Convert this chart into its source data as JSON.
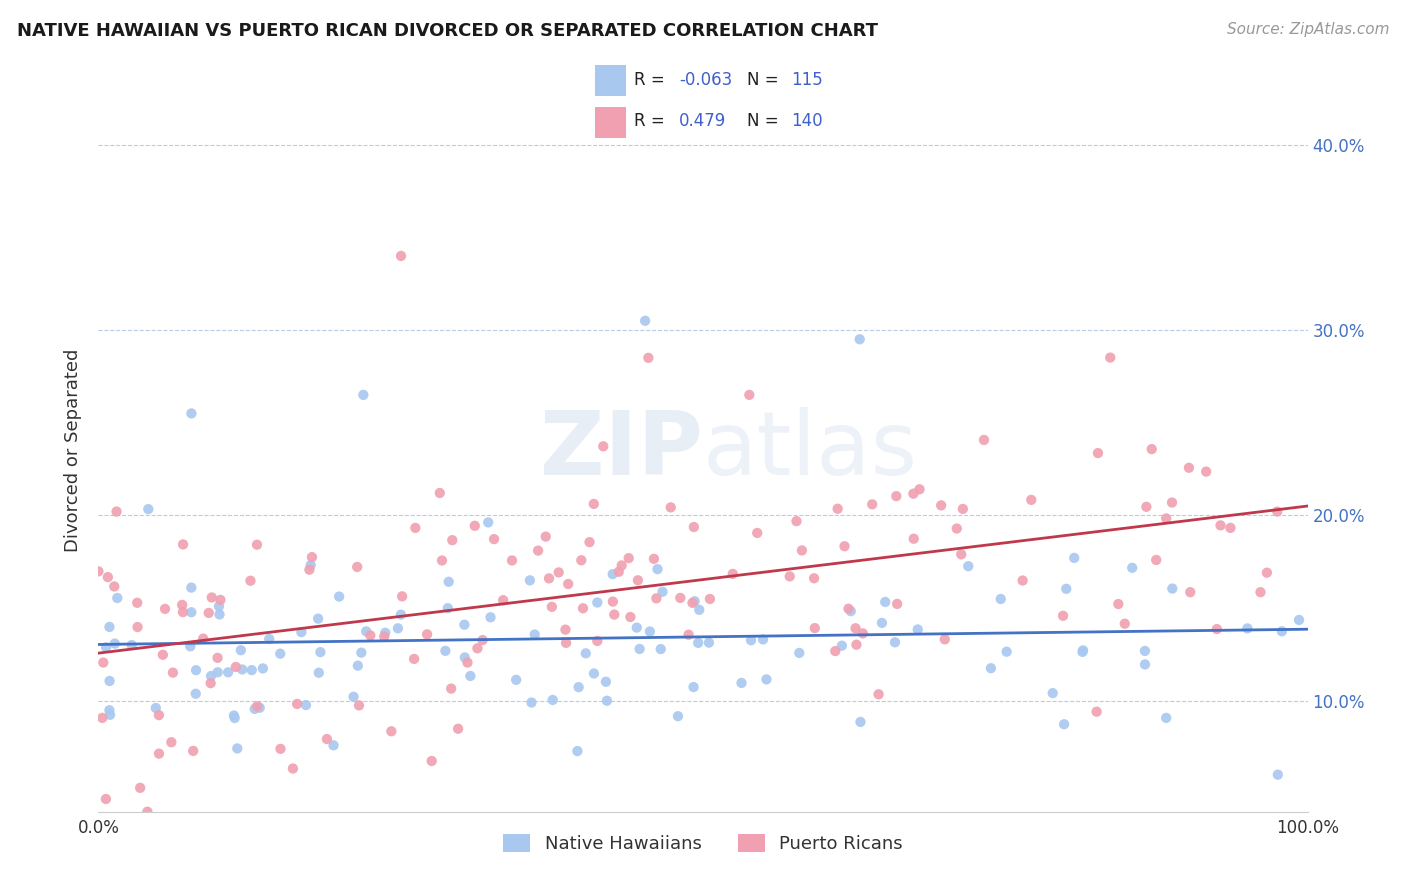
{
  "title": "NATIVE HAWAIIAN VS PUERTO RICAN DIVORCED OR SEPARATED CORRELATION CHART",
  "source": "Source: ZipAtlas.com",
  "ylabel": "Divorced or Separated",
  "watermark": "ZIPatlas",
  "color_blue": "#a8c8f0",
  "color_pink": "#f0a0b0",
  "line_blue": "#4472c4",
  "line_pink": "#c0384c",
  "text_blue": "#4060cc",
  "text_pink": "#cc4060",
  "ytick_color": "#4472c4",
  "xlim": [
    0.0,
    1.0
  ],
  "ylim": [
    0.04,
    0.43
  ],
  "xticks": [
    0.0,
    1.0
  ],
  "yticks": [
    0.1,
    0.2,
    0.3,
    0.4
  ],
  "xticklabels": [
    "0.0%",
    "100.0%"
  ],
  "yticklabels": [
    "10.0%",
    "20.0%",
    "30.0%",
    "40.0%"
  ],
  "background": "#ffffff",
  "grid_color": "#b8cce4",
  "R1": -0.063,
  "N1": 115,
  "R2": 0.479,
  "N2": 140,
  "legend_r1_val": "-0.063",
  "legend_n1_val": "115",
  "legend_r2_val": "0.479",
  "legend_n2_val": "140"
}
